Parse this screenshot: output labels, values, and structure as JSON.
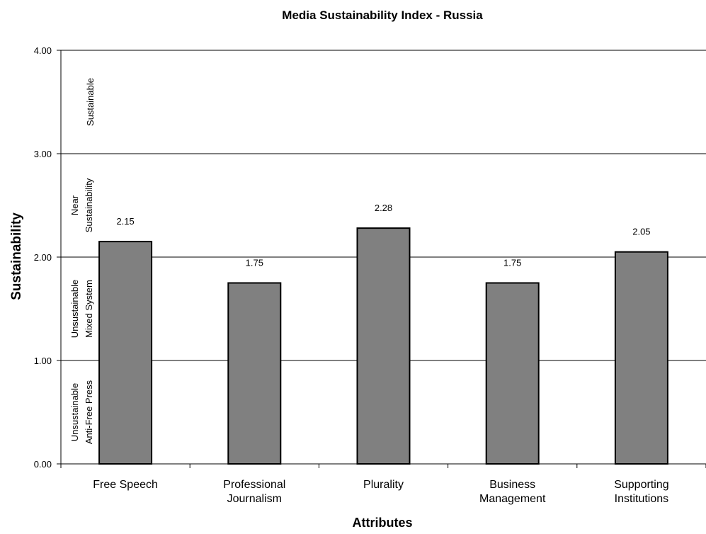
{
  "chart_data": {
    "type": "bar",
    "title": "Media Sustainability Index - Russia",
    "xlabel": "Attributes",
    "ylabel": "Sustainability",
    "ylim": [
      0,
      4
    ],
    "yticks": [
      "0.00",
      "1.00",
      "2.00",
      "3.00",
      "4.00"
    ],
    "grid": true,
    "legend": "none",
    "categories": [
      [
        "Free Speech"
      ],
      [
        "Professional",
        "Journalism"
      ],
      [
        "Plurality"
      ],
      [
        "Business",
        "Management"
      ],
      [
        "Supporting",
        "Institutions"
      ]
    ],
    "values": [
      2.15,
      1.75,
      2.28,
      1.75,
      2.05
    ],
    "value_labels": [
      "2.15",
      "1.75",
      "2.28",
      "1.75",
      "2.05"
    ],
    "bar_color": "#808080",
    "band_labels": [
      {
        "lines": [
          "Unsustainable",
          "Anti-Free Press"
        ],
        "band": [
          0,
          1
        ]
      },
      {
        "lines": [
          "Unsustainable",
          "Mixed System"
        ],
        "band": [
          1,
          2
        ]
      },
      {
        "lines": [
          "Near",
          "Sustainability"
        ],
        "band": [
          2,
          3
        ]
      },
      {
        "lines": [
          "Sustainable"
        ],
        "band": [
          3,
          4
        ]
      }
    ]
  }
}
